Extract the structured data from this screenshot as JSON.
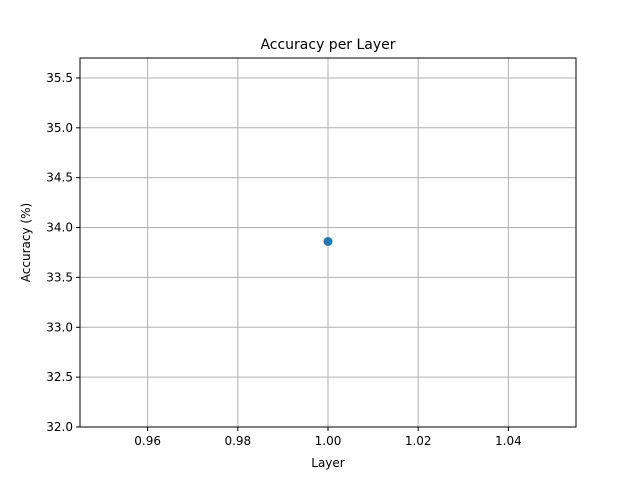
{
  "chart_data": {
    "type": "line",
    "title": "Accuracy per Layer",
    "xlabel": "Layer",
    "ylabel": "Accuracy (%)",
    "xlim": [
      0.945,
      1.055
    ],
    "ylim": [
      32.0,
      35.7
    ],
    "grid": true,
    "x_ticks": [
      0.96,
      0.98,
      1.0,
      1.02,
      1.04
    ],
    "x_tick_labels": [
      "0.96",
      "0.98",
      "1.00",
      "1.02",
      "1.04"
    ],
    "y_ticks": [
      32.0,
      32.5,
      33.0,
      33.5,
      34.0,
      34.5,
      35.0,
      35.5
    ],
    "y_tick_labels": [
      "32.0",
      "32.5",
      "33.0",
      "33.5",
      "34.0",
      "34.5",
      "35.0",
      "35.5"
    ],
    "series": [
      {
        "color": "#1f77b4",
        "marker": "circle",
        "x": [
          1.0
        ],
        "y": [
          33.86
        ]
      }
    ]
  }
}
